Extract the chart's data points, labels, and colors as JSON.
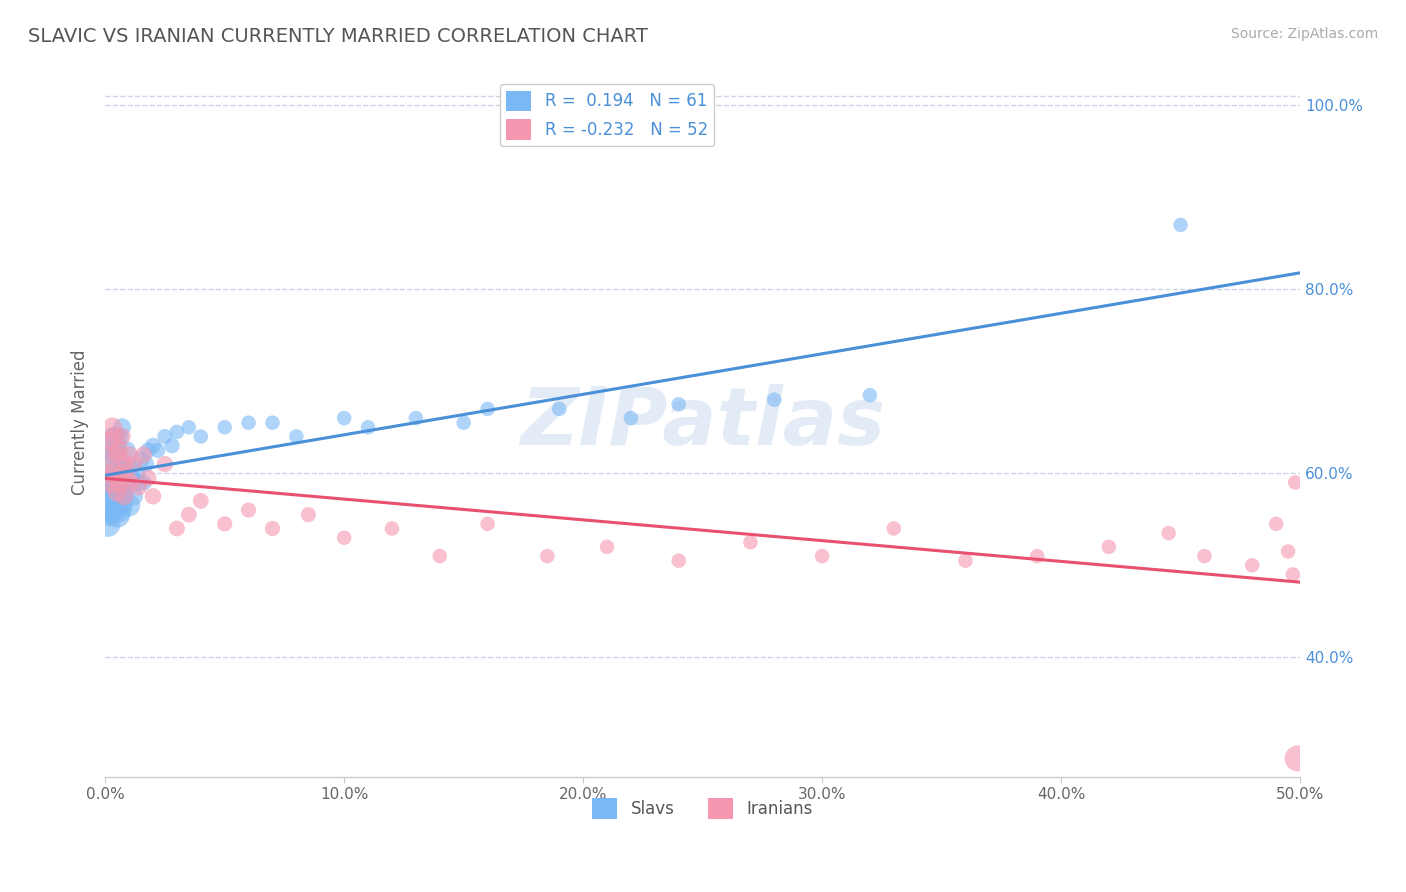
{
  "title": "SLAVIC VS IRANIAN CURRENTLY MARRIED CORRELATION CHART",
  "source": "Source: ZipAtlas.com",
  "ylabel": "Currently Married",
  "xmin": 0.0,
  "xmax": 0.5,
  "ymin": 0.27,
  "ymax": 1.04,
  "slavs_R": 0.194,
  "slavs_N": 61,
  "iranians_R": -0.232,
  "iranians_N": 52,
  "slavs_color": "#7ab8f5",
  "iranians_color": "#f597b0",
  "slavs_line_color": "#4a90d9",
  "iranians_line_color": "#e85070",
  "background_color": "#ffffff",
  "grid_color": "#c8d4e8",
  "watermark": "ZIPatlas",
  "xticks": [
    0.0,
    0.1,
    0.2,
    0.3,
    0.4,
    0.5
  ],
  "xtick_labels": [
    "0.0%",
    "10.0%",
    "20.0%",
    "30.0%",
    "40.0%",
    "50.0%"
  ],
  "yticks": [
    0.4,
    0.6,
    0.8,
    1.0
  ],
  "ytick_labels": [
    "40.0%",
    "60.0%",
    "80.0%",
    "100.0%"
  ],
  "slavs_x": [
    0.001,
    0.001,
    0.002,
    0.002,
    0.002,
    0.003,
    0.003,
    0.003,
    0.003,
    0.004,
    0.004,
    0.004,
    0.004,
    0.004,
    0.005,
    0.005,
    0.005,
    0.005,
    0.006,
    0.006,
    0.006,
    0.006,
    0.007,
    0.007,
    0.007,
    0.008,
    0.008,
    0.009,
    0.009,
    0.01,
    0.01,
    0.011,
    0.012,
    0.013,
    0.014,
    0.015,
    0.016,
    0.017,
    0.018,
    0.02,
    0.022,
    0.025,
    0.028,
    0.03,
    0.035,
    0.04,
    0.05,
    0.06,
    0.07,
    0.08,
    0.1,
    0.11,
    0.13,
    0.15,
    0.16,
    0.19,
    0.22,
    0.24,
    0.28,
    0.32,
    0.45
  ],
  "slavs_y": [
    0.545,
    0.59,
    0.555,
    0.6,
    0.625,
    0.56,
    0.575,
    0.615,
    0.64,
    0.57,
    0.58,
    0.595,
    0.62,
    0.64,
    0.555,
    0.575,
    0.6,
    0.63,
    0.56,
    0.585,
    0.61,
    0.64,
    0.565,
    0.585,
    0.65,
    0.575,
    0.605,
    0.59,
    0.625,
    0.565,
    0.605,
    0.595,
    0.575,
    0.6,
    0.59,
    0.615,
    0.59,
    0.61,
    0.625,
    0.63,
    0.625,
    0.64,
    0.63,
    0.645,
    0.65,
    0.64,
    0.65,
    0.655,
    0.655,
    0.64,
    0.66,
    0.65,
    0.66,
    0.655,
    0.67,
    0.67,
    0.66,
    0.675,
    0.68,
    0.685,
    0.87
  ],
  "slavs_size": [
    350,
    200,
    280,
    180,
    160,
    320,
    250,
    200,
    180,
    400,
    350,
    300,
    250,
    200,
    350,
    280,
    220,
    190,
    300,
    240,
    200,
    170,
    250,
    200,
    170,
    220,
    190,
    200,
    170,
    250,
    200,
    180,
    170,
    160,
    150,
    150,
    140,
    140,
    130,
    130,
    120,
    120,
    120,
    110,
    110,
    110,
    110,
    110,
    110,
    110,
    110,
    110,
    110,
    110,
    110,
    110,
    110,
    110,
    110,
    110,
    110
  ],
  "iranians_x": [
    0.001,
    0.002,
    0.002,
    0.003,
    0.003,
    0.004,
    0.004,
    0.005,
    0.005,
    0.006,
    0.006,
    0.007,
    0.007,
    0.008,
    0.008,
    0.009,
    0.01,
    0.011,
    0.012,
    0.014,
    0.016,
    0.018,
    0.02,
    0.025,
    0.03,
    0.035,
    0.04,
    0.05,
    0.06,
    0.07,
    0.085,
    0.1,
    0.12,
    0.14,
    0.16,
    0.185,
    0.21,
    0.24,
    0.27,
    0.3,
    0.33,
    0.36,
    0.39,
    0.42,
    0.445,
    0.46,
    0.48,
    0.49,
    0.495,
    0.497,
    0.498,
    0.499
  ],
  "iranians_y": [
    0.6,
    0.62,
    0.635,
    0.59,
    0.65,
    0.6,
    0.64,
    0.58,
    0.62,
    0.59,
    0.625,
    0.6,
    0.64,
    0.575,
    0.61,
    0.595,
    0.62,
    0.59,
    0.61,
    0.585,
    0.62,
    0.595,
    0.575,
    0.61,
    0.54,
    0.555,
    0.57,
    0.545,
    0.56,
    0.54,
    0.555,
    0.53,
    0.54,
    0.51,
    0.545,
    0.51,
    0.52,
    0.505,
    0.525,
    0.51,
    0.54,
    0.505,
    0.51,
    0.52,
    0.535,
    0.51,
    0.5,
    0.545,
    0.515,
    0.49,
    0.59,
    0.29
  ],
  "iranians_size": [
    200,
    220,
    190,
    250,
    200,
    220,
    190,
    200,
    170,
    200,
    170,
    180,
    160,
    170,
    160,
    160,
    160,
    150,
    150,
    150,
    150,
    140,
    140,
    140,
    130,
    130,
    130,
    120,
    120,
    120,
    120,
    110,
    110,
    110,
    110,
    110,
    110,
    110,
    110,
    110,
    110,
    110,
    110,
    110,
    110,
    110,
    110,
    110,
    110,
    110,
    110,
    350
  ]
}
